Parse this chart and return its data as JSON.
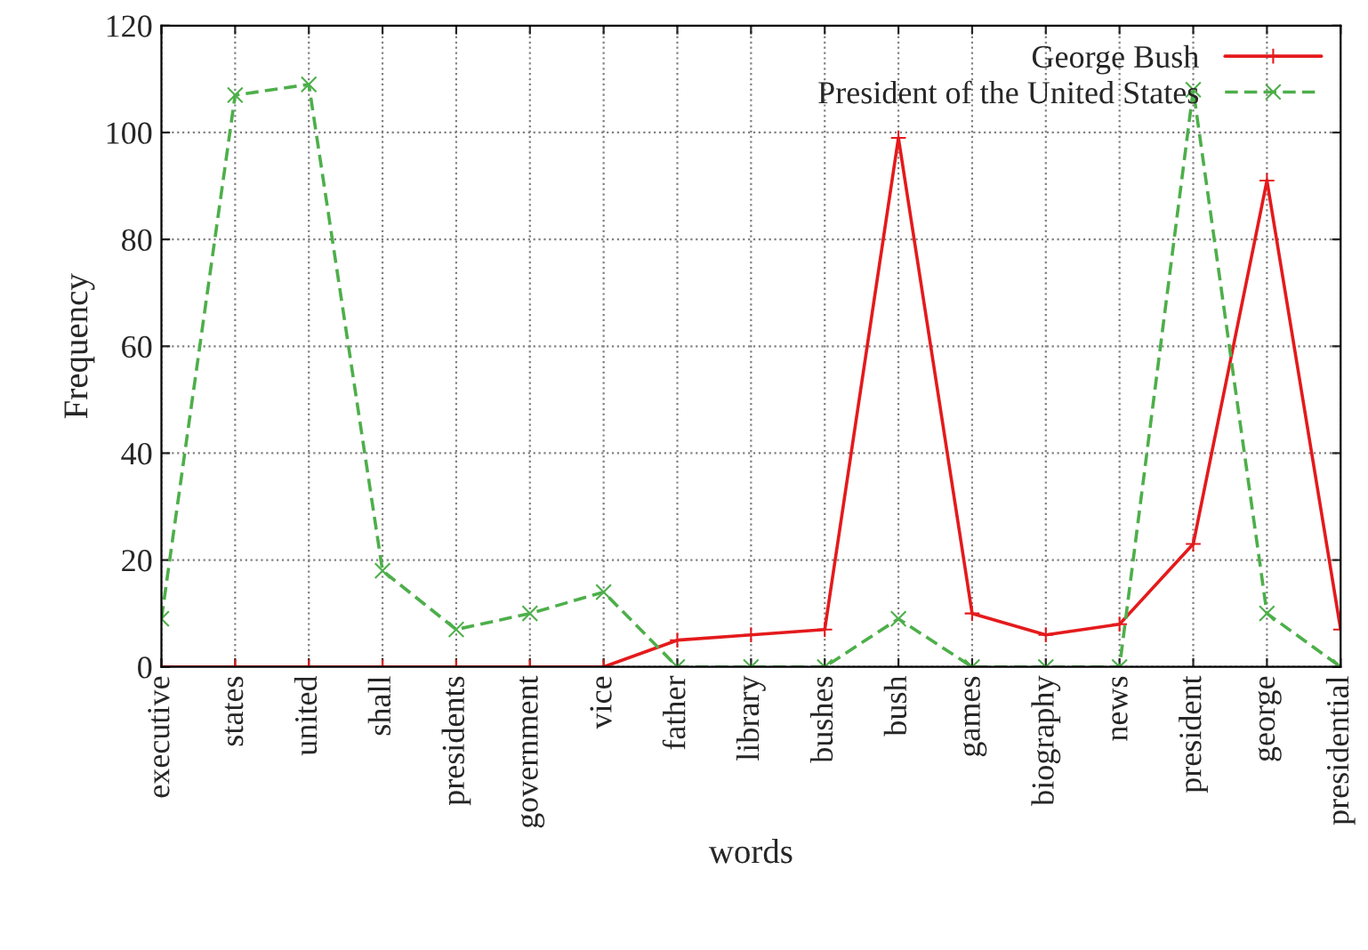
{
  "chart_data": {
    "type": "line",
    "xlabel": "words",
    "ylabel": "Frequency",
    "categories": [
      "executive",
      "states",
      "united",
      "shall",
      "presidents",
      "government",
      "vice",
      "father",
      "library",
      "bushes",
      "bush",
      "games",
      "biography",
      "news",
      "president",
      "george",
      "presidential"
    ],
    "series": [
      {
        "name": "George Bush",
        "color": "#e41a1c",
        "marker": "plus",
        "line_style": "solid",
        "values": [
          0,
          0,
          0,
          0,
          0,
          0,
          0,
          5,
          6,
          7,
          99,
          10,
          6,
          8,
          23,
          91,
          7
        ]
      },
      {
        "name": "President of the United States",
        "color": "#4daf4a",
        "marker": "cross",
        "line_style": "dashed",
        "values": [
          9,
          107,
          109,
          18,
          7,
          10,
          14,
          0,
          0,
          0,
          9,
          0,
          0,
          0,
          108,
          10,
          0
        ]
      }
    ],
    "ylim": [
      0,
      120
    ],
    "yticks": [
      0,
      20,
      40,
      60,
      80,
      100,
      120
    ],
    "grid": true,
    "legend": "top right"
  }
}
